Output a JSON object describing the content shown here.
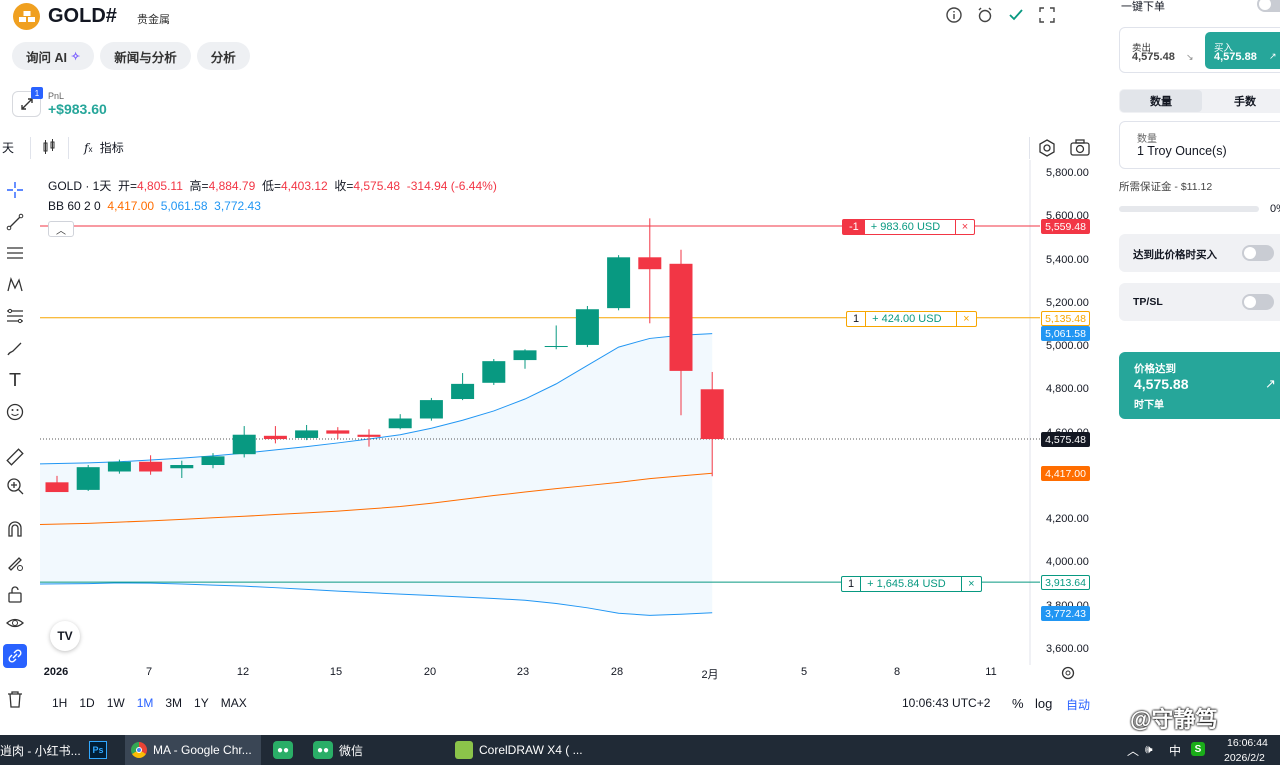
{
  "header": {
    "symbol": "GOLD#",
    "category": "贵金属",
    "tabs": [
      {
        "label": "询问 AI"
      },
      {
        "label": "新闻与分析"
      },
      {
        "label": "分析"
      }
    ],
    "pnl": {
      "badge": "1",
      "label": "PnL",
      "value": "+$983.60"
    }
  },
  "chart_toolbar": {
    "interval": "天",
    "indicators_label": "指标"
  },
  "legend": {
    "title": "GOLD · 1天",
    "open_label": "开=",
    "open": "4,805.11",
    "high_label": "高=",
    "high": "4,884.79",
    "low_label": "低=",
    "low": "4,403.12",
    "close_label": "收=",
    "close": "4,575.48",
    "change": "-314.94 (-6.44%)",
    "bb_label": "BB 60 2 0",
    "bb_basis": "4,417.00",
    "bb_upper": "5,061.58",
    "bb_lower": "3,772.43"
  },
  "positions": [
    {
      "qty": "-1",
      "pnl": "+ 983.60 USD",
      "price": "5,559.48",
      "color": "#f23645",
      "close_icon": "×"
    },
    {
      "qty": "1",
      "pnl": "+ 424.00 USD",
      "price": "5,135.48",
      "color": "#f7a600",
      "close_icon": "×"
    },
    {
      "qty": "1",
      "pnl": "+ 1,645.84 USD",
      "price": "3,913.64",
      "color": "#26a69a",
      "close_icon": "×"
    }
  ],
  "price_labels": {
    "bb_upper": "5,061.58",
    "current": "4,575.48",
    "bb_basis": "4,417.00",
    "bb_lower": "3,772.43"
  },
  "chart_data": {
    "type": "candlestick",
    "title": "GOLD · 1天",
    "y_ticks": [
      "5,800.00",
      "5,600.00",
      "5,400.00",
      "5,200.00",
      "5,000.00",
      "4,800.00",
      "4,600.00",
      "4,200.00",
      "4,000.00",
      "3,800.00",
      "3,600.00"
    ],
    "ylim": [
      3560,
      5870
    ],
    "x_ticks": [
      "2026",
      "7",
      "12",
      "15",
      "20",
      "23",
      "28",
      "2月",
      "5",
      "8",
      "11"
    ],
    "candles": [
      {
        "date": "2026-01-02",
        "o": 4375,
        "h": 4405,
        "l": 4335,
        "c": 4330
      },
      {
        "date": "2026-01-05",
        "o": 4340,
        "h": 4455,
        "l": 4335,
        "c": 4445
      },
      {
        "date": "2026-01-06",
        "o": 4425,
        "h": 4480,
        "l": 4415,
        "c": 4470
      },
      {
        "date": "2026-01-07",
        "o": 4470,
        "h": 4500,
        "l": 4410,
        "c": 4425
      },
      {
        "date": "2026-01-08",
        "o": 4440,
        "h": 4475,
        "l": 4395,
        "c": 4455
      },
      {
        "date": "2026-01-09",
        "o": 4455,
        "h": 4510,
        "l": 4440,
        "c": 4495
      },
      {
        "date": "2026-01-12",
        "o": 4505,
        "h": 4635,
        "l": 4490,
        "c": 4595
      },
      {
        "date": "2026-01-13",
        "o": 4590,
        "h": 4635,
        "l": 4555,
        "c": 4575
      },
      {
        "date": "2026-01-14",
        "o": 4580,
        "h": 4640,
        "l": 4570,
        "c": 4615
      },
      {
        "date": "2026-01-15",
        "o": 4615,
        "h": 4630,
        "l": 4575,
        "c": 4600
      },
      {
        "date": "2026-01-16",
        "o": 4595,
        "h": 4620,
        "l": 4540,
        "c": 4585
      },
      {
        "date": "2026-01-19",
        "o": 4625,
        "h": 4690,
        "l": 4620,
        "c": 4670
      },
      {
        "date": "2026-01-20",
        "o": 4670,
        "h": 4765,
        "l": 4660,
        "c": 4755
      },
      {
        "date": "2026-01-21",
        "o": 4760,
        "h": 4880,
        "l": 4755,
        "c": 4830
      },
      {
        "date": "2026-01-22",
        "o": 4835,
        "h": 4945,
        "l": 4825,
        "c": 4935
      },
      {
        "date": "2026-01-23",
        "o": 4940,
        "h": 4990,
        "l": 4900,
        "c": 4985
      },
      {
        "date": "2026-01-26",
        "o": 5005,
        "h": 5100,
        "l": 4990,
        "c": 5005
      },
      {
        "date": "2026-01-27",
        "o": 5010,
        "h": 5190,
        "l": 5000,
        "c": 5175
      },
      {
        "date": "2026-01-28",
        "o": 5180,
        "h": 5425,
        "l": 5170,
        "c": 5415
      },
      {
        "date": "2026-01-29",
        "o": 5415,
        "h": 5595,
        "l": 5110,
        "c": 5360
      },
      {
        "date": "2026-01-30",
        "o": 5385,
        "h": 5450,
        "l": 4685,
        "c": 4890
      },
      {
        "date": "2026-02-02",
        "o": 4805,
        "h": 4885,
        "l": 4403,
        "c": 4575
      }
    ],
    "bb_upper": [
      4460,
      4465,
      4470,
      4478,
      4487,
      4497,
      4510,
      4525,
      4540,
      4557,
      4575,
      4595,
      4625,
      4662,
      4705,
      4760,
      4830,
      4915,
      5000,
      5040,
      5055,
      5062
    ],
    "bb_basis": [
      4180,
      4185,
      4191,
      4197,
      4204,
      4211,
      4218,
      4226,
      4234,
      4242,
      4252,
      4263,
      4278,
      4296,
      4314,
      4330,
      4346,
      4360,
      4375,
      4392,
      4405,
      4417
    ],
    "bb_lower": [
      3905,
      3907,
      3910,
      3909,
      3905,
      3900,
      3895,
      3888,
      3880,
      3872,
      3865,
      3858,
      3852,
      3845,
      3838,
      3830,
      3815,
      3795,
      3770,
      3760,
      3765,
      3772
    ],
    "bull_color": "#089981",
    "bear_color": "#f23645"
  },
  "bottom_bar": {
    "ranges": [
      "1H",
      "1D",
      "1W",
      "1M",
      "3M",
      "1Y",
      "MAX"
    ],
    "active_range": "1M",
    "time": "10:06:43 UTC+2",
    "percent": "%",
    "log": "log",
    "auto": "自动"
  },
  "right_panel": {
    "one_click": "一键下单",
    "sell_label": "卖出",
    "sell_price": "4,575.48",
    "buy_label": "买入",
    "buy_price": "4,575.88",
    "seg_qty": "数量",
    "seg_lots": "手数",
    "qty_label": "数量",
    "qty_value": "1 Troy Ounce(s)",
    "margin": "所需保证金 - $11.12",
    "slider_pct": "0%",
    "buy_at_price": "达到此价格时买入",
    "tpsl": "TP/SL",
    "target_title": "价格达到",
    "target_price": "4,575.88",
    "target_sub": "时下单"
  },
  "taskbar": {
    "tasks": [
      {
        "label": "逍肉 - 小红书..."
      },
      {
        "label": "Ps"
      },
      {
        "label": "MA - Google Chr..."
      },
      {
        "label": ""
      },
      {
        "label": "微信"
      },
      {
        "label": "CorelDRAW X4 ( ..."
      }
    ],
    "ime": "中",
    "time": "16:06:44",
    "date": "2026/2/2",
    "watermark": "@守静笃"
  }
}
